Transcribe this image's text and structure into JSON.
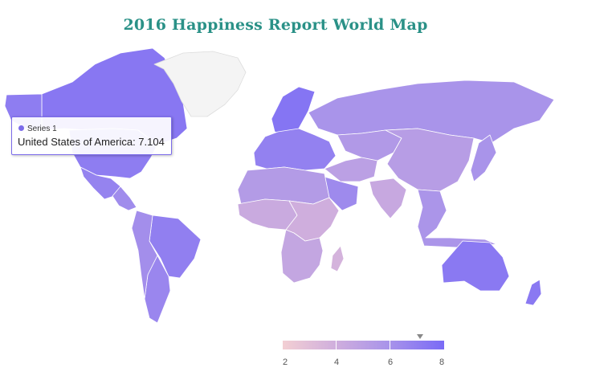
{
  "title": "2016 Happiness Report World Map",
  "tooltip": {
    "series": "Series 1",
    "line": "United States of America: 7.104"
  },
  "legend": {
    "min": 2,
    "max": 8,
    "ticks": [
      "2",
      "4",
      "6",
      "8"
    ],
    "marker_value": 7.104,
    "color_low": "#f3cfd3",
    "color_high": "#7a6bf6"
  },
  "colors": {
    "no_data": "#f4f4f4",
    "border": "#ffffff",
    "title": "#2a9187",
    "tooltip_border": "#7b6bea"
  },
  "map": {
    "regions": [
      {
        "name": "Canada",
        "value": 7.4
      },
      {
        "name": "Alaska",
        "value": 7.1
      },
      {
        "name": "Greenland",
        "value": null
      },
      {
        "name": "United States of America",
        "value": 7.1
      },
      {
        "name": "Mexico",
        "value": 6.8
      },
      {
        "name": "Central America",
        "value": 6.3
      },
      {
        "name": "Brazil",
        "value": 7.0
      },
      {
        "name": "Argentina",
        "value": 6.6
      },
      {
        "name": "Andes",
        "value": 6.2
      },
      {
        "name": "Northern Europe",
        "value": 7.5
      },
      {
        "name": "Western Europe",
        "value": 6.9
      },
      {
        "name": "Russia",
        "value": 5.9
      },
      {
        "name": "Central Asia",
        "value": 5.5
      },
      {
        "name": "China",
        "value": 5.2
      },
      {
        "name": "Middle East",
        "value": 5.0
      },
      {
        "name": "Saudi Arabia",
        "value": 6.4
      },
      {
        "name": "India",
        "value": 4.4
      },
      {
        "name": "Southeast Asia",
        "value": 5.8
      },
      {
        "name": "Japan",
        "value": 5.9
      },
      {
        "name": "North Africa",
        "value": 5.4
      },
      {
        "name": "West Africa",
        "value": 4.3
      },
      {
        "name": "East Africa",
        "value": 4.0
      },
      {
        "name": "Southern Africa",
        "value": 4.6
      },
      {
        "name": "Madagascar",
        "value": 3.7
      },
      {
        "name": "Australia",
        "value": 7.3
      },
      {
        "name": "New Zealand",
        "value": 7.3
      }
    ]
  }
}
